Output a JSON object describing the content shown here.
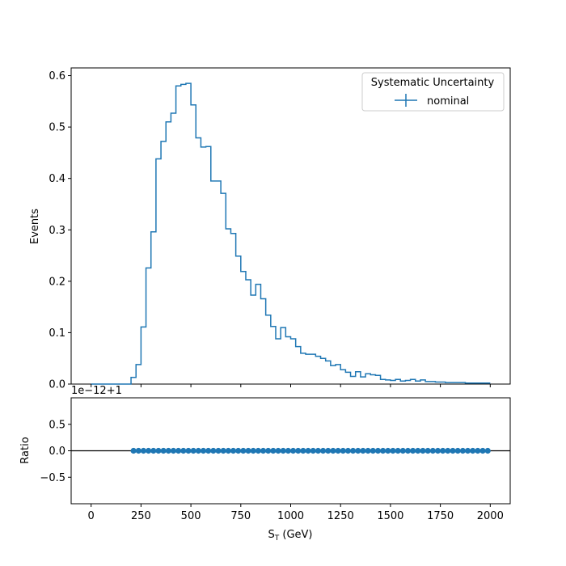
{
  "chart_data": [
    {
      "type": "line",
      "drawstyle": "steps-post",
      "ylabel": "Events",
      "xlim": [
        -100,
        2100
      ],
      "ylim": [
        0,
        0.615
      ],
      "yticks": [
        0.0,
        0.1,
        0.2,
        0.3,
        0.4,
        0.5,
        0.6
      ],
      "ytick_labels": [
        "0.0",
        "0.1",
        "0.2",
        "0.3",
        "0.4",
        "0.5",
        "0.6"
      ],
      "xticks": [
        0,
        250,
        500,
        750,
        1000,
        1250,
        1500,
        1750,
        2000
      ],
      "grid": false,
      "legend": {
        "title": "Systematic Uncertainty",
        "location": "upper right",
        "entries": [
          "nominal"
        ]
      },
      "series": [
        {
          "name": "nominal",
          "color": "#1f77b4",
          "bin_edges": [
            0,
            200,
            225,
            250,
            275,
            300,
            325,
            350,
            375,
            400,
            425,
            450,
            475,
            500,
            525,
            550,
            575,
            600,
            625,
            650,
            675,
            700,
            725,
            750,
            775,
            800,
            825,
            850,
            875,
            900,
            925,
            950,
            975,
            1000,
            1025,
            1050,
            1075,
            1100,
            1125,
            1150,
            1175,
            1200,
            1225,
            1250,
            1275,
            1300,
            1325,
            1350,
            1375,
            1400,
            1425,
            1450,
            1475,
            1500,
            1525,
            1550,
            1575,
            1600,
            1625,
            1650,
            1675,
            1700,
            1725,
            1750,
            1775,
            1800,
            1825,
            1850,
            1875,
            1900,
            1925,
            1950,
            1975,
            2000
          ],
          "values": [
            0.0,
            0.013,
            0.038,
            0.111,
            0.226,
            0.296,
            0.438,
            0.472,
            0.51,
            0.527,
            0.58,
            0.583,
            0.585,
            0.543,
            0.479,
            0.461,
            0.462,
            0.395,
            0.395,
            0.371,
            0.302,
            0.293,
            0.249,
            0.219,
            0.203,
            0.173,
            0.194,
            0.166,
            0.134,
            0.112,
            0.088,
            0.11,
            0.092,
            0.088,
            0.073,
            0.06,
            0.058,
            0.058,
            0.054,
            0.05,
            0.045,
            0.036,
            0.038,
            0.028,
            0.023,
            0.015,
            0.024,
            0.014,
            0.02,
            0.018,
            0.017,
            0.009,
            0.008,
            0.007,
            0.009,
            0.006,
            0.007,
            0.009,
            0.006,
            0.008,
            0.005,
            0.005,
            0.004,
            0.004,
            0.003,
            0.003,
            0.003,
            0.003,
            0.002,
            0.002,
            0.002,
            0.002,
            0.002
          ]
        }
      ]
    },
    {
      "type": "scatter",
      "xlabel_tex": {
        "base": "S",
        "sub": "T",
        "suffix": " (GeV)"
      },
      "ylabel": "Ratio",
      "offset_text": "1e−12+1",
      "xlim": [
        -100,
        2100
      ],
      "ylim": [
        -1,
        1
      ],
      "yticks": [
        -0.5,
        0.0,
        0.5
      ],
      "ytick_labels": [
        "−0.5",
        "0.0",
        "0.5"
      ],
      "xticks": [
        0,
        250,
        500,
        750,
        1000,
        1250,
        1500,
        1750,
        2000
      ],
      "xtick_labels": [
        "0",
        "250",
        "500",
        "750",
        "1000",
        "1250",
        "1500",
        "1750",
        "2000"
      ],
      "reference_line": 0.0,
      "grid": false,
      "series": [
        {
          "color": "#1f77b4",
          "x": [
            212.5,
            237.5,
            262.5,
            287.5,
            312.5,
            337.5,
            362.5,
            387.5,
            412.5,
            437.5,
            462.5,
            487.5,
            512.5,
            537.5,
            562.5,
            587.5,
            612.5,
            637.5,
            662.5,
            687.5,
            712.5,
            737.5,
            762.5,
            787.5,
            812.5,
            837.5,
            862.5,
            887.5,
            912.5,
            937.5,
            962.5,
            987.5,
            1012.5,
            1037.5,
            1062.5,
            1087.5,
            1112.5,
            1137.5,
            1162.5,
            1187.5,
            1212.5,
            1237.5,
            1262.5,
            1287.5,
            1312.5,
            1337.5,
            1362.5,
            1387.5,
            1412.5,
            1437.5,
            1462.5,
            1487.5,
            1512.5,
            1537.5,
            1562.5,
            1587.5,
            1612.5,
            1637.5,
            1662.5,
            1687.5,
            1712.5,
            1737.5,
            1762.5,
            1787.5,
            1812.5,
            1837.5,
            1862.5,
            1887.5,
            1912.5,
            1937.5,
            1962.5,
            1987.5
          ],
          "y_value": 0.0
        }
      ]
    }
  ]
}
